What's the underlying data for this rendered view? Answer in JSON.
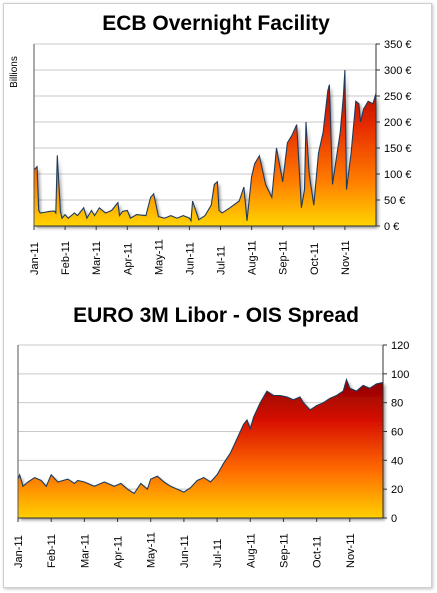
{
  "chart_data": [
    {
      "type": "area",
      "title": "ECB Overnight Facility",
      "ylabel": "Billions",
      "xlabel": "",
      "ylim": [
        0,
        350
      ],
      "y_ticks": [
        0,
        50,
        100,
        150,
        200,
        250,
        300,
        350
      ],
      "y_tick_labels": [
        "0 €",
        "50 €",
        "100 €",
        "150 €",
        "200 €",
        "250 €",
        "300 €",
        "350 €"
      ],
      "x_ticks": [
        0,
        1,
        2,
        3,
        4,
        5,
        6,
        7,
        8,
        9,
        10
      ],
      "x_tick_labels": [
        "Jan-11",
        "Feb-11",
        "Mar-11",
        "Apr-11",
        "May-11",
        "Jun-11",
        "Jul-11",
        "Aug-11",
        "Sep-11",
        "Oct-11",
        "Nov-11"
      ],
      "grid": true,
      "series": [
        {
          "name": "",
          "x": [
            0,
            0.1,
            0.15,
            0.2,
            0.5,
            0.65,
            0.7,
            0.75,
            0.85,
            0.9,
            1.0,
            1.1,
            1.3,
            1.4,
            1.6,
            1.7,
            1.85,
            1.95,
            2.1,
            2.3,
            2.5,
            2.7,
            2.75,
            2.85,
            3.0,
            3.1,
            3.3,
            3.6,
            3.75,
            3.85,
            4.0,
            4.2,
            4.4,
            4.6,
            4.8,
            5.0,
            5.05,
            5.1,
            5.3,
            5.5,
            5.7,
            5.8,
            5.9,
            5.95,
            6.05,
            6.3,
            6.6,
            6.75,
            6.85,
            7.0,
            7.1,
            7.25,
            7.45,
            7.65,
            7.8,
            8.0,
            8.15,
            8.3,
            8.45,
            8.6,
            8.7,
            8.75,
            8.85,
            9.0,
            9.15,
            9.3,
            9.45,
            9.5,
            9.6,
            9.75,
            9.85,
            9.95,
            10.0,
            10.05,
            10.2,
            10.35,
            10.45,
            10.5,
            10.6,
            10.75,
            10.9,
            11.0
          ],
          "values": [
            108,
            114,
            30,
            25,
            28,
            29,
            25,
            136,
            28,
            15,
            22,
            15,
            25,
            20,
            35,
            15,
            30,
            20,
            35,
            25,
            30,
            45,
            20,
            28,
            30,
            15,
            22,
            20,
            55,
            62,
            18,
            15,
            20,
            15,
            20,
            15,
            10,
            48,
            12,
            20,
            40,
            80,
            85,
            30,
            25,
            35,
            48,
            75,
            10,
            95,
            120,
            135,
            80,
            55,
            150,
            85,
            160,
            175,
            195,
            35,
            70,
            200,
            100,
            40,
            140,
            180,
            260,
            272,
            80,
            140,
            180,
            250,
            300,
            70,
            140,
            240,
            235,
            200,
            225,
            240,
            235,
            255
          ]
        }
      ]
    },
    {
      "type": "area",
      "title": "EURO 3M Libor - OIS Spread",
      "ylabel": "",
      "xlabel": "",
      "ylim": [
        0,
        120
      ],
      "y_ticks": [
        0,
        20,
        40,
        60,
        80,
        100,
        120
      ],
      "y_tick_labels": [
        "0",
        "20",
        "40",
        "60",
        "80",
        "100",
        "120"
      ],
      "x_ticks": [
        0,
        1,
        2,
        3,
        4,
        5,
        6,
        7,
        8,
        9,
        10
      ],
      "x_tick_labels": [
        "Jan-11",
        "Feb-11",
        "Mar-11",
        "Apr-11",
        "May-11",
        "Jun-11",
        "Jul-11",
        "Aug-11",
        "Sep-11",
        "Oct-11",
        "Nov-11"
      ],
      "grid": true,
      "series": [
        {
          "name": "",
          "x": [
            0,
            0.05,
            0.15,
            0.3,
            0.5,
            0.7,
            0.85,
            1.0,
            1.2,
            1.5,
            1.7,
            1.8,
            2.0,
            2.3,
            2.6,
            2.9,
            3.1,
            3.3,
            3.5,
            3.7,
            3.9,
            4.0,
            4.2,
            4.4,
            4.6,
            4.8,
            5.0,
            5.2,
            5.4,
            5.6,
            5.8,
            6.0,
            6.2,
            6.4,
            6.6,
            6.8,
            6.9,
            7.0,
            7.1,
            7.3,
            7.5,
            7.7,
            7.9,
            8.1,
            8.3,
            8.5,
            8.6,
            8.8,
            9.0,
            9.2,
            9.4,
            9.6,
            9.8,
            9.9,
            10.0,
            10.2,
            10.4,
            10.6,
            10.8,
            11.0
          ],
          "values": [
            27,
            30,
            22,
            25,
            28,
            26,
            22,
            30,
            25,
            27,
            24,
            26,
            25,
            22,
            25,
            22,
            24,
            20,
            17,
            24,
            20,
            27,
            29,
            25,
            22,
            20,
            18,
            21,
            26,
            28,
            25,
            30,
            38,
            45,
            55,
            65,
            68,
            62,
            70,
            80,
            88,
            85,
            85,
            84,
            82,
            84,
            80,
            75,
            78,
            80,
            83,
            85,
            88,
            96,
            90,
            88,
            92,
            90,
            93,
            94
          ]
        }
      ]
    }
  ]
}
